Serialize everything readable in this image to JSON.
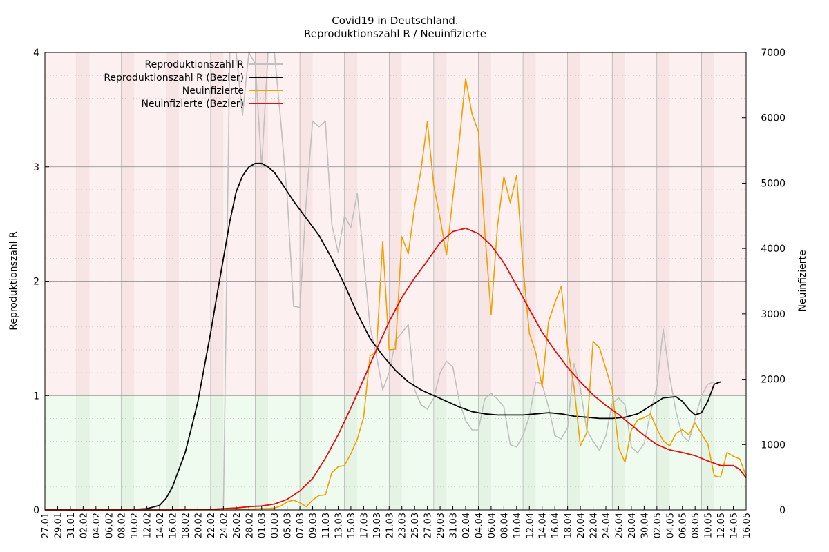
{
  "chart_data": {
    "type": "line",
    "title": "Covid19 in Deutschland.",
    "subtitle": "Reproduktionszahl R / Neuinfizierte",
    "ylabel": "Reproduktionszahl R",
    "y2label": "Neuinfizierte",
    "ylim": [
      0,
      4
    ],
    "y2lim": [
      0,
      7000
    ],
    "y_ticks": [
      0,
      1,
      2,
      3,
      4
    ],
    "y2_ticks": [
      0,
      1000,
      2000,
      3000,
      4000,
      5000,
      6000,
      7000
    ],
    "x_ticks": [
      "27.01",
      "29.01",
      "31.01",
      "02.02",
      "04.02",
      "06.02",
      "08.02",
      "10.02",
      "12.02",
      "14.02",
      "16.02",
      "18.02",
      "20.02",
      "22.02",
      "24.02",
      "26.02",
      "28.02",
      "01.03",
      "03.03",
      "05.03",
      "07.03",
      "09.03",
      "11.03",
      "13.03",
      "15.03",
      "17.03",
      "19.03",
      "21.03",
      "23.03",
      "25.03",
      "27.03",
      "29.03",
      "31.03",
      "02.04",
      "04.04",
      "06.04",
      "08.04",
      "10.04",
      "12.04",
      "14.04",
      "16.04",
      "18.04",
      "20.04",
      "22.04",
      "24.04",
      "26.04",
      "28.04",
      "30.04",
      "02.05",
      "04.05",
      "06.05",
      "08.05",
      "10.05",
      "12.05",
      "14.05",
      "16.05"
    ],
    "threshold": 1,
    "zones": [
      {
        "name": "above-1",
        "color": "#fdf0f0"
      },
      {
        "name": "below-1",
        "color": "#f0fbf0"
      }
    ],
    "grid": true,
    "legend_position": "top-left",
    "series": [
      {
        "name": "Reproduktionszahl R",
        "axis": "left",
        "color": "#c0c0c0",
        "x": [
          "24.02",
          "25.02",
          "26.02",
          "27.02",
          "28.02",
          "29.02",
          "01.03",
          "02.03",
          "03.03",
          "04.03",
          "05.03",
          "06.03",
          "07.03",
          "08.03",
          "09.03",
          "10.03",
          "11.03",
          "12.03",
          "13.03",
          "14.03",
          "15.03",
          "16.03",
          "17.03",
          "18.03",
          "19.03",
          "20.03",
          "21.03",
          "22.03",
          "23.03",
          "24.03",
          "25.03",
          "26.03",
          "27.03",
          "28.03",
          "29.03",
          "30.03",
          "31.03",
          "01.04",
          "02.04",
          "03.04",
          "04.04",
          "05.04",
          "06.04",
          "07.04",
          "08.04",
          "09.04",
          "10.04",
          "11.04",
          "12.04",
          "13.04",
          "14.04",
          "15.04",
          "16.04",
          "17.04",
          "18.04",
          "19.04",
          "20.04",
          "21.04",
          "22.04",
          "23.04",
          "24.04",
          "25.04",
          "26.04",
          "27.04",
          "28.04",
          "29.04",
          "30.04",
          "01.05",
          "02.05",
          "03.05",
          "04.05",
          "05.05",
          "06.05",
          "07.05",
          "08.05",
          "09.05",
          "10.05",
          "11.05"
        ],
        "values": [
          0,
          4,
          4,
          3.45,
          4,
          3.9,
          3.0,
          4.0,
          4.0,
          3.4,
          2.75,
          1.78,
          1.77,
          2.7,
          3.4,
          3.35,
          3.4,
          2.5,
          2.25,
          2.57,
          2.47,
          2.77,
          2.2,
          1.6,
          1.35,
          1.05,
          1.2,
          1.48,
          1.55,
          1.62,
          1.05,
          0.92,
          0.88,
          0.98,
          1.2,
          1.3,
          1.25,
          0.95,
          0.78,
          0.7,
          0.7,
          0.97,
          1.02,
          0.97,
          0.9,
          0.57,
          0.55,
          0.65,
          0.82,
          1.12,
          1.1,
          0.9,
          0.65,
          0.62,
          0.72,
          1.28,
          1.06,
          0.7,
          0.6,
          0.52,
          0.65,
          0.93,
          0.98,
          0.92,
          0.55,
          0.5,
          0.58,
          0.85,
          1.08,
          1.58,
          1.17,
          0.86,
          0.65,
          0.6,
          0.8,
          1.0,
          1.1,
          1.12
        ]
      },
      {
        "name": "Reproduktionszahl R (Bezier)",
        "axis": "left",
        "color": "#000000",
        "x": [
          "27.01",
          "31.01",
          "04.02",
          "08.02",
          "12.02",
          "14.02",
          "15.02",
          "16.02",
          "17.02",
          "18.02",
          "19.02",
          "20.02",
          "21.02",
          "22.02",
          "23.02",
          "24.02",
          "25.02",
          "26.02",
          "27.02",
          "28.02",
          "29.02",
          "01.03",
          "02.03",
          "03.03",
          "04.03",
          "06.03",
          "08.03",
          "10.03",
          "12.03",
          "14.03",
          "16.03",
          "18.03",
          "20.03",
          "22.03",
          "24.03",
          "26.03",
          "28.03",
          "30.03",
          "01.04",
          "03.04",
          "05.04",
          "07.04",
          "09.04",
          "11.04",
          "13.04",
          "15.04",
          "17.04",
          "19.04",
          "21.04",
          "23.04",
          "25.04",
          "27.04",
          "29.04",
          "01.05",
          "03.05",
          "05.05",
          "06.05",
          "07.05",
          "08.05",
          "09.05",
          "10.05",
          "11.05",
          "12.05"
        ],
        "values": [
          0,
          0,
          0,
          0,
          0.01,
          0.04,
          0.1,
          0.2,
          0.35,
          0.5,
          0.72,
          0.95,
          1.25,
          1.55,
          1.88,
          2.2,
          2.52,
          2.78,
          2.92,
          3.0,
          3.03,
          3.03,
          3.0,
          2.95,
          2.87,
          2.7,
          2.55,
          2.4,
          2.2,
          1.97,
          1.72,
          1.5,
          1.35,
          1.22,
          1.12,
          1.05,
          1.0,
          0.95,
          0.9,
          0.86,
          0.84,
          0.83,
          0.83,
          0.83,
          0.84,
          0.85,
          0.84,
          0.82,
          0.81,
          0.8,
          0.8,
          0.81,
          0.84,
          0.91,
          0.98,
          0.99,
          0.95,
          0.88,
          0.83,
          0.85,
          0.95,
          1.1,
          1.12
        ]
      },
      {
        "name": "Neuinfizierte",
        "axis": "right",
        "color": "#f0a000",
        "x": [
          "27.01",
          "31.01",
          "04.02",
          "08.02",
          "12.02",
          "16.02",
          "20.02",
          "24.02",
          "26.02",
          "28.02",
          "01.03",
          "02.03",
          "03.03",
          "04.03",
          "05.03",
          "06.03",
          "07.03",
          "08.03",
          "09.03",
          "10.03",
          "11.03",
          "12.03",
          "13.03",
          "14.03",
          "15.03",
          "16.03",
          "17.03",
          "18.03",
          "19.03",
          "20.03",
          "21.03",
          "22.03",
          "23.03",
          "24.03",
          "25.03",
          "26.03",
          "27.03",
          "28.03",
          "29.03",
          "30.03",
          "31.03",
          "01.04",
          "02.04",
          "03.04",
          "04.04",
          "05.04",
          "06.04",
          "07.04",
          "08.04",
          "09.04",
          "10.04",
          "11.04",
          "12.04",
          "13.04",
          "14.04",
          "15.04",
          "16.04",
          "17.04",
          "18.04",
          "19.04",
          "20.04",
          "21.04",
          "22.04",
          "23.04",
          "24.04",
          "25.04",
          "26.04",
          "27.04",
          "28.04",
          "29.04",
          "30.04",
          "01.05",
          "02.05",
          "03.05",
          "04.05",
          "05.05",
          "06.05",
          "07.05",
          "08.05",
          "09.05",
          "10.05",
          "11.05",
          "12.05",
          "13.05",
          "14.05",
          "15.05",
          "16.05"
        ],
        "values": [
          0,
          0,
          0,
          0,
          0,
          0,
          0,
          0,
          0,
          10,
          20,
          20,
          30,
          60,
          120,
          150,
          110,
          50,
          150,
          220,
          230,
          570,
          660,
          680,
          860,
          1080,
          1420,
          2360,
          2410,
          4110,
          2450,
          2460,
          4180,
          3920,
          4640,
          5200,
          5940,
          4960,
          4460,
          3900,
          4780,
          5640,
          6600,
          6060,
          5790,
          4270,
          2990,
          4340,
          5100,
          4700,
          5120,
          3730,
          2700,
          2410,
          1880,
          2880,
          3170,
          3420,
          2480,
          1880,
          980,
          1180,
          2580,
          2480,
          2160,
          1840,
          950,
          730,
          1220,
          1380,
          1410,
          1470,
          1240,
          1060,
          980,
          1170,
          1230,
          1150,
          1330,
          1160,
          1010,
          520,
          500,
          880,
          820,
          780,
          520
        ]
      },
      {
        "name": "Neuinfizierte (Bezier)",
        "axis": "right",
        "color": "#e01010",
        "x": [
          "27.01",
          "06.02",
          "16.02",
          "22.02",
          "26.02",
          "28.02",
          "01.03",
          "03.03",
          "05.03",
          "07.03",
          "09.03",
          "11.03",
          "13.03",
          "15.03",
          "17.03",
          "19.03",
          "21.03",
          "23.03",
          "25.03",
          "27.03",
          "29.03",
          "31.03",
          "02.04",
          "04.04",
          "06.04",
          "08.04",
          "10.04",
          "12.04",
          "14.04",
          "16.04",
          "18.04",
          "20.04",
          "22.04",
          "24.04",
          "26.04",
          "28.04",
          "30.04",
          "02.05",
          "04.05",
          "06.05",
          "08.05",
          "10.05",
          "12.05",
          "14.05",
          "15.05",
          "16.05"
        ],
        "values": [
          0,
          0,
          0,
          10,
          30,
          50,
          60,
          90,
          160,
          290,
          480,
          790,
          1150,
          1560,
          2000,
          2450,
          2880,
          3250,
          3550,
          3810,
          4090,
          4260,
          4310,
          4230,
          4050,
          3780,
          3430,
          3070,
          2720,
          2440,
          2180,
          1960,
          1760,
          1600,
          1460,
          1300,
          1140,
          1000,
          920,
          880,
          830,
          750,
          680,
          680,
          620,
          490
        ]
      }
    ]
  }
}
